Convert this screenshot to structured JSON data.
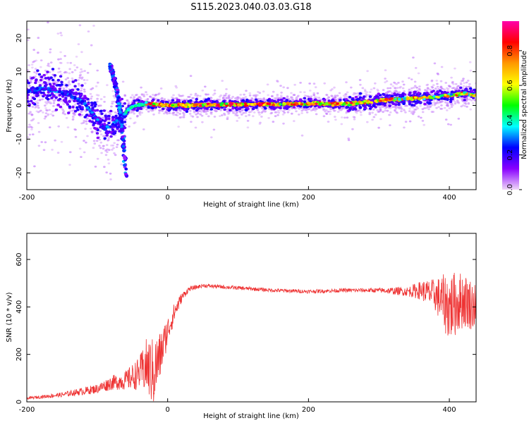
{
  "title": "S115.2023.040.03.03.G18",
  "chart_data": [
    {
      "type": "heatmap",
      "xlabel": "Height of straight line (km)",
      "ylabel": "Frequency (Hz)",
      "xlim": [
        -200,
        438
      ],
      "ylim": [
        -25,
        25
      ],
      "x_ticks": [
        {
          "v": -200,
          "label": "-200"
        },
        {
          "v": 0,
          "label": "0"
        },
        {
          "v": 200,
          "label": "200"
        },
        {
          "v": 400,
          "label": "400"
        }
      ],
      "y_ticks": [
        {
          "v": 20,
          "label": "20"
        },
        {
          "v": 10,
          "label": "10"
        },
        {
          "v": 0,
          "label": "0"
        },
        {
          "v": -10,
          "label": "-10"
        },
        {
          "v": -20,
          "label": "-20"
        }
      ],
      "ridge_x": [
        -200,
        -180,
        -160,
        -140,
        -120,
        -100,
        -90,
        -80,
        -70,
        -62,
        -55,
        -45,
        -30,
        0,
        100,
        200,
        265,
        300,
        340,
        380,
        420,
        438
      ],
      "ridge_y": [
        4,
        5,
        4.5,
        3,
        1,
        -4,
        -7,
        -6,
        -4,
        -3,
        -1,
        0,
        0.5,
        0,
        0.3,
        0.5,
        0.5,
        1.5,
        2,
        2.5,
        3.5,
        3
      ],
      "spike_x": [
        -82,
        -75,
        -70,
        -65,
        -61,
        -59
      ],
      "spike_y": [
        12,
        7,
        2,
        -6,
        -15,
        -21
      ],
      "colorbar": {
        "label": "Normalized spectral amplitude",
        "ticks": [
          {
            "v": 0.0,
            "label": "0.0"
          },
          {
            "v": 0.2,
            "label": "0.2"
          },
          {
            "v": 0.4,
            "label": "0.4"
          },
          {
            "v": 0.6,
            "label": "0.6"
          },
          {
            "v": 0.8,
            "label": "0.8"
          }
        ],
        "range": [
          0,
          0.97
        ],
        "colors": [
          "#f0d8f8",
          "#8800ff",
          "#0000ff",
          "#00ffff",
          "#00ff00",
          "#ffff00",
          "#ff9900",
          "#ff0000",
          "#ff00aa"
        ]
      }
    },
    {
      "type": "line",
      "xlabel": "Height of straight line (km)",
      "ylabel": "SNR (10 * v/v)",
      "xlim": [
        -200,
        438
      ],
      "ylim": [
        0,
        710
      ],
      "x_ticks": [
        {
          "v": -200,
          "label": "-200"
        },
        {
          "v": 0,
          "label": "0"
        },
        {
          "v": 200,
          "label": "200"
        },
        {
          "v": 400,
          "label": "400"
        }
      ],
      "y_ticks": [
        {
          "v": 0,
          "label": "0"
        },
        {
          "v": 200,
          "label": "200"
        },
        {
          "v": 400,
          "label": "400"
        },
        {
          "v": 600,
          "label": "600"
        }
      ],
      "color": "#ee3333",
      "x": [
        -200,
        -150,
        -100,
        -80,
        -60,
        -40,
        -30,
        -20,
        -10,
        0,
        10,
        20,
        30,
        50,
        100,
        150,
        200,
        250,
        300,
        340,
        360,
        380,
        400,
        420,
        438
      ],
      "y": [
        15,
        30,
        55,
        80,
        90,
        120,
        150,
        120,
        200,
        300,
        380,
        440,
        475,
        490,
        480,
        470,
        465,
        470,
        470,
        465,
        470,
        450,
        400,
        430,
        400
      ],
      "noise": [
        5,
        10,
        20,
        30,
        40,
        70,
        120,
        150,
        100,
        60,
        40,
        20,
        10,
        8,
        8,
        8,
        8,
        8,
        10,
        20,
        40,
        70,
        150,
        120,
        100
      ]
    }
  ]
}
